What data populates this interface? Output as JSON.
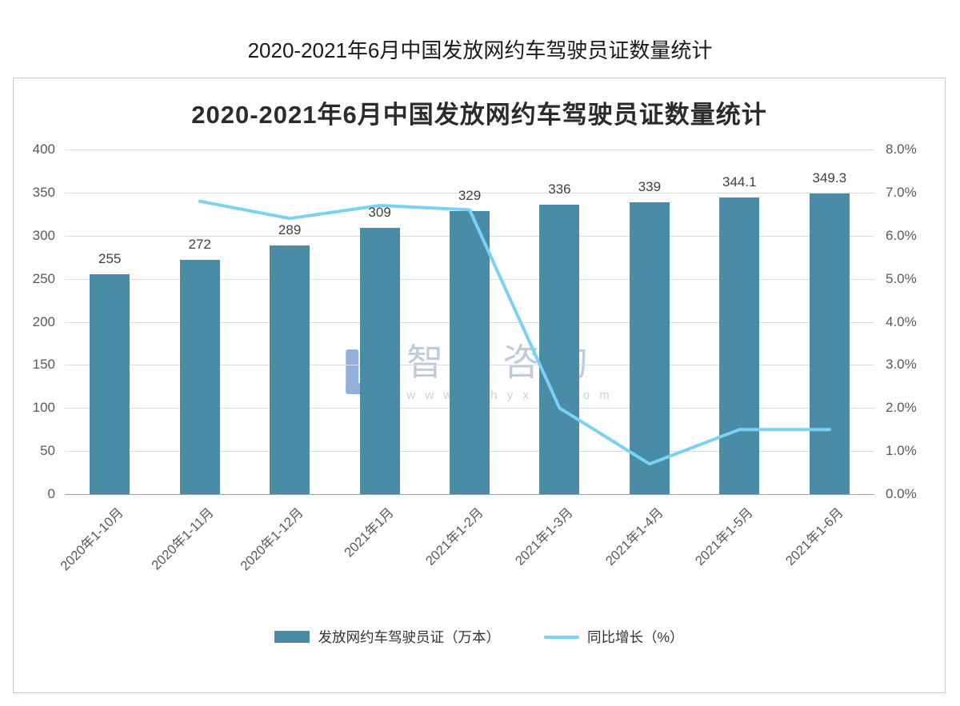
{
  "page": {
    "title": "2020-2021年6月中国发放网约车驾驶员证数量统计"
  },
  "chart_data": {
    "type": "bar",
    "subtype": "bar+line combo, dual axis",
    "title": "2020-2021年6月中国发放网约车驾驶员证数量统计",
    "categories": [
      "2020年1-10月",
      "2020年1-11月",
      "2020年1-12月",
      "2021年1月",
      "2021年1-2月",
      "2021年1-3月",
      "2021年1-4月",
      "2021年1-5月",
      "2021年1-6月"
    ],
    "series": [
      {
        "name": "发放网约车驾驶员证（万本）",
        "type": "bar",
        "axis": "left",
        "color": "#4A8CA6",
        "values": [
          255,
          272,
          289,
          309,
          329,
          336,
          339,
          344.1,
          349.3
        ],
        "labels": [
          "255",
          "272",
          "289",
          "309",
          "329",
          "336",
          "339",
          "344.1",
          "349.3"
        ]
      },
      {
        "name": "同比增长（%）",
        "type": "line",
        "axis": "right",
        "color": "#79D2F3",
        "values": [
          null,
          6.8,
          6.4,
          6.7,
          6.6,
          2.0,
          0.7,
          1.5,
          1.5
        ]
      }
    ],
    "left_axis": {
      "min": 0,
      "max": 400,
      "step": 50,
      "ticks": [
        "400",
        "350",
        "300",
        "250",
        "200",
        "150",
        "100",
        "50",
        "0"
      ]
    },
    "right_axis": {
      "min": 0,
      "max": 8,
      "step": 1,
      "ticks": [
        "8.0%",
        "7.0%",
        "6.0%",
        "5.0%",
        "4.0%",
        "3.0%",
        "2.0%",
        "1.0%",
        "0.0%"
      ]
    },
    "xlabel": "",
    "ylabel": "",
    "grid": true,
    "legend_position": "bottom"
  },
  "watermark": {
    "name": "智研咨询",
    "url_text": "w w w . c h y x x . c o m"
  }
}
